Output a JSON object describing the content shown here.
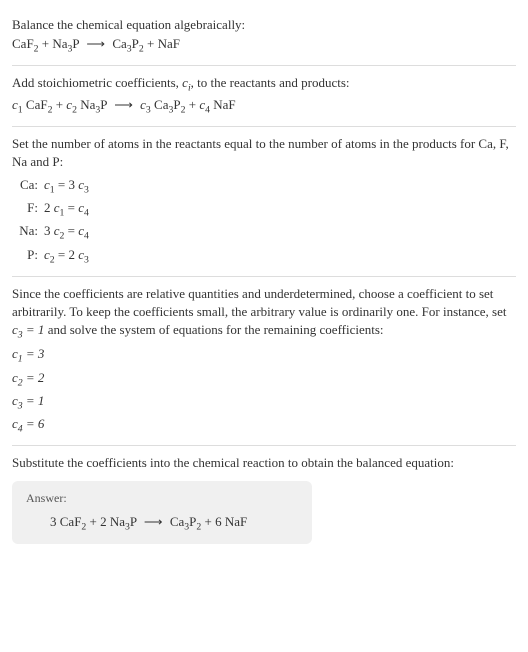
{
  "section1": {
    "intro": "Balance the chemical equation algebraically:",
    "reaction": "CaF₂ + Na₃P ⟶ Ca₃P₂ + NaF"
  },
  "section2": {
    "intro_prefix": "Add stoichiometric coefficients, ",
    "intro_var": "cᵢ",
    "intro_suffix": ", to the reactants and products:",
    "reaction": "c₁ CaF₂ + c₂ Na₃P ⟶ c₃ Ca₃P₂ + c₄ NaF"
  },
  "section3": {
    "intro": "Set the number of atoms in the reactants equal to the number of atoms in the products for Ca, F, Na and P:",
    "equations": [
      {
        "label": "Ca:",
        "eq": "c₁ = 3 c₃"
      },
      {
        "label": "F:",
        "eq": "2 c₁ = c₄"
      },
      {
        "label": "Na:",
        "eq": "3 c₂ = c₄"
      },
      {
        "label": "P:",
        "eq": "c₂ = 2 c₃"
      }
    ]
  },
  "section4": {
    "intro_p1": "Since the coefficients are relative quantities and underdetermined, choose a coefficient to set arbitrarily. To keep the coefficients small, the arbitrary value is ordinarily one. For instance, set ",
    "intro_var": "c₃ = 1",
    "intro_p2": " and solve the system of equations for the remaining coefficients:",
    "coefficients": [
      "c₁ = 3",
      "c₂ = 2",
      "c₃ = 1",
      "c₄ = 6"
    ]
  },
  "section5": {
    "intro": "Substitute the coefficients into the chemical reaction to obtain the balanced equation:",
    "answer_label": "Answer:",
    "answer": "3 CaF₂ + 2 Na₃P ⟶ Ca₃P₂ + 6 NaF"
  }
}
